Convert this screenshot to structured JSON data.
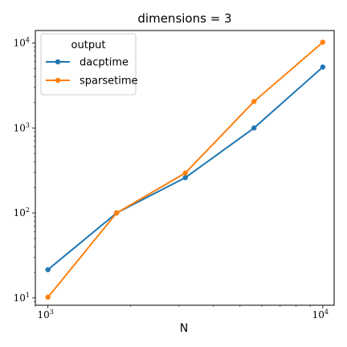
{
  "chart_data": {
    "type": "line",
    "title": "dimensions = 3",
    "xlabel": "N",
    "ylabel": "",
    "xscale": "log",
    "yscale": "log",
    "xlim": [
      900,
      11000
    ],
    "ylim": [
      8.2,
      14000
    ],
    "grid": false,
    "x": [
      1000,
      1778,
      3162,
      5623,
      10000
    ],
    "series": [
      {
        "name": "dacptime",
        "values": [
          21.5,
          100,
          260,
          1000,
          5200
        ],
        "color": "#1f77b4"
      },
      {
        "name": "sparsetime",
        "values": [
          10.2,
          100,
          295,
          2050,
          10200
        ],
        "color": "#ff7f0e"
      }
    ],
    "legend": {
      "title": "output",
      "placement": "top-left"
    },
    "x_ticks": [
      {
        "value": 1000,
        "base": "10",
        "exp": "3"
      },
      {
        "value": 10000,
        "base": "10",
        "exp": "4"
      }
    ],
    "y_ticks": [
      {
        "value": 10,
        "base": "10",
        "exp": "1"
      },
      {
        "value": 100,
        "base": "10",
        "exp": "2"
      },
      {
        "value": 1000,
        "base": "10",
        "exp": "3"
      },
      {
        "value": 10000,
        "base": "10",
        "exp": "4"
      }
    ]
  }
}
